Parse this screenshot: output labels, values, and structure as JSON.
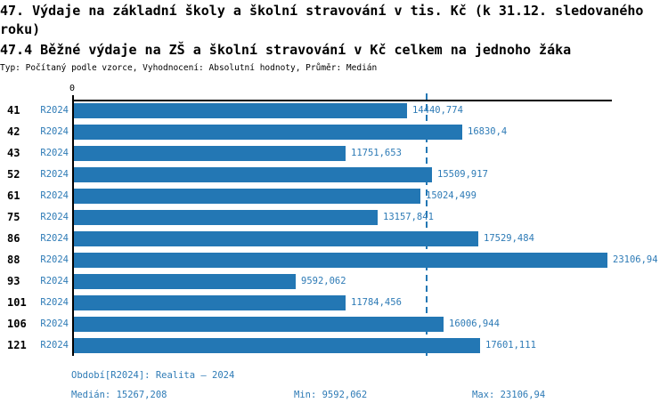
{
  "header": {
    "title": "47. Výdaje na základní školy a školní stravování v tis. Kč (k 31.12. sledovaného roku)",
    "subtitle": "47.4 Běžné výdaje na ZŠ a školní stravování v Kč celkem na jednoho žáka",
    "meta": "Typ: Počítaný podle vzorce, Vyhodnocení: Absolutní hodnoty, Průměr: Medián"
  },
  "chart_data": {
    "type": "bar",
    "orientation": "horizontal",
    "title": "47.4 Běžné výdaje na ZŠ a školní stravování v Kč celkem na jednoho žáka",
    "xlabel": "",
    "ylabel": "",
    "categories": [
      "41",
      "42",
      "43",
      "52",
      "61",
      "75",
      "86",
      "88",
      "93",
      "101",
      "106",
      "121"
    ],
    "series_label": "R2024",
    "values": [
      14440.774,
      16830.4,
      11751.653,
      15509.917,
      15024.499,
      13157.841,
      17529.484,
      23106.94,
      9592.062,
      11784.456,
      16006.944,
      17601.111
    ],
    "value_labels": [
      "14440,774",
      "16830,4",
      "11751,653",
      "15509,917",
      "15024,499",
      "13157,841",
      "17529,484",
      "23106,94",
      "9592,062",
      "11784,456",
      "16006,944",
      "17601,111"
    ],
    "xlim": [
      0,
      23377
    ],
    "zero_tick_label": "0",
    "grid": false,
    "legend": "none",
    "median": 15267.208,
    "min": 9592.062,
    "max": 23106.94
  },
  "footer": {
    "period_label": "Období[R2024]: Realita – 2024",
    "median_label": "Medián: 15267,208",
    "min_label": "Min: 9592,062",
    "max_label": "Max: 23106,94"
  },
  "colors": {
    "bar": "#2377b4",
    "blue_text": "#2e7bb6",
    "axis": "#000000"
  }
}
